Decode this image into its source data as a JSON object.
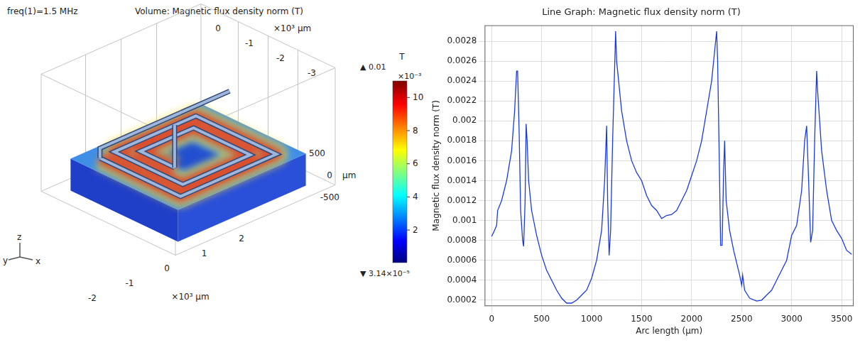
{
  "volume_plot": {
    "header_left": "freq(1)=1.5 MHz",
    "title": "Volume: Magnetic flux density norm (T)",
    "axes": {
      "x": {
        "label": "×10³ μm",
        "ticks": [
          2,
          1,
          0,
          -1,
          -2
        ]
      },
      "y": {
        "label": "×10³ μm",
        "ticks": [
          0,
          -1,
          -2,
          -3
        ]
      },
      "z": {
        "label": "μm",
        "ticks": [
          500,
          0,
          -500
        ]
      }
    },
    "triad": [
      "x",
      "y",
      "z"
    ],
    "colorbar": {
      "title": "T",
      "max_label": "▲ 0.01",
      "scale_label": "×10⁻³",
      "min_label": "▼ 3.14×10⁻⁵",
      "range": [
        0.0314,
        11
      ],
      "ticks": [
        2,
        4,
        6,
        8,
        10
      ]
    }
  },
  "chart_data": {
    "type": "line",
    "title": "Line Graph: Magnetic flux density norm (T)",
    "x_label": "Arc length (μm)",
    "y_label": "Magnetic flux density norm (T)",
    "color": "#1a3ae0",
    "grid": true,
    "xlim": [
      -70,
      3620
    ],
    "xticks": [
      0,
      500,
      1000,
      1500,
      2000,
      2500,
      3000,
      3500
    ],
    "ylim": [
      0.00014,
      0.00296
    ],
    "yticks": [
      0.0002,
      0.0004,
      0.0006,
      0.0008,
      0.001,
      0.0012,
      0.0014,
      0.0016,
      0.0018,
      0.002,
      0.0022,
      0.0024,
      0.0026,
      0.0028
    ],
    "x": [
      0,
      20,
      50,
      60,
      100,
      150,
      200,
      230,
      250,
      260,
      275,
      290,
      310,
      320,
      335,
      345,
      355,
      370,
      400,
      450,
      500,
      550,
      600,
      650,
      700,
      750,
      800,
      850,
      900,
      950,
      1000,
      1050,
      1100,
      1130,
      1150,
      1160,
      1175,
      1190,
      1210,
      1240,
      1250,
      1260,
      1300,
      1350,
      1400,
      1450,
      1500,
      1550,
      1600,
      1650,
      1700,
      1750,
      1800,
      1850,
      1900,
      1950,
      2000,
      2050,
      2100,
      2150,
      2200,
      2250,
      2260,
      2275,
      2290,
      2305,
      2320,
      2330,
      2345,
      2380,
      2420,
      2480,
      2500,
      2510,
      2530,
      2580,
      2650,
      2700,
      2750,
      2800,
      2850,
      2900,
      2950,
      3000,
      3050,
      3100,
      3130,
      3150,
      3170,
      3190,
      3210,
      3230,
      3250,
      3260,
      3300,
      3350,
      3400,
      3450,
      3500,
      3550,
      3600
    ],
    "values": [
      0.00084,
      0.00088,
      0.00095,
      0.0011,
      0.0012,
      0.0014,
      0.0017,
      0.0021,
      0.0025,
      0.0025,
      0.0019,
      0.0011,
      0.0008,
      0.00074,
      0.0012,
      0.00197,
      0.0018,
      0.0014,
      0.0011,
      0.00085,
      0.00065,
      0.0005,
      0.0004,
      0.0003,
      0.00022,
      0.00017,
      0.00017,
      0.0002,
      0.00025,
      0.0003,
      0.00042,
      0.0006,
      0.0009,
      0.0014,
      0.00195,
      0.0012,
      0.00065,
      0.0009,
      0.0018,
      0.0029,
      0.0026,
      0.0025,
      0.0021,
      0.0018,
      0.0016,
      0.00148,
      0.0014,
      0.00125,
      0.00115,
      0.0011,
      0.00102,
      0.00105,
      0.00106,
      0.0011,
      0.0012,
      0.0013,
      0.00145,
      0.0016,
      0.0018,
      0.0021,
      0.0024,
      0.0029,
      0.0026,
      0.0017,
      0.00075,
      0.00075,
      0.0015,
      0.0018,
      0.0012,
      0.0009,
      0.0007,
      0.00045,
      0.00035,
      0.00045,
      0.0003,
      0.00022,
      0.00019,
      0.0002,
      0.00025,
      0.0003,
      0.0004,
      0.0005,
      0.0006,
      0.00085,
      0.00095,
      0.0013,
      0.0018,
      0.00195,
      0.0014,
      0.00078,
      0.0009,
      0.0018,
      0.0025,
      0.0023,
      0.0017,
      0.0013,
      0.001,
      0.0009,
      0.00082,
      0.0007,
      0.00066
    ]
  }
}
